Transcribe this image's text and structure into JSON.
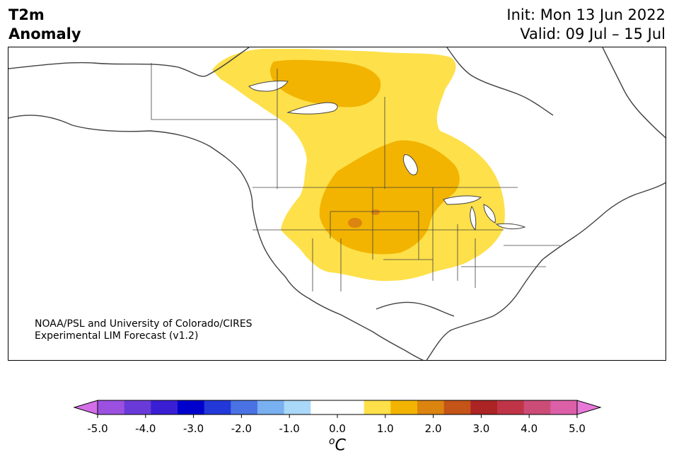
{
  "title": {
    "line1": "T2m",
    "line2": "Anomaly"
  },
  "dates": {
    "init": "Init: Mon 13 Jun 2022",
    "valid": "Valid: 09 Jul – 15 Jul"
  },
  "credit": {
    "line1": "NOAA/PSL and University of Colorado/CIRES",
    "line2": "Experimental LIM Forecast (v1.2)"
  },
  "colorbar": {
    "colors": [
      "#d46ee8",
      "#9b50e0",
      "#6a3ad8",
      "#3a1ed4",
      "#0000cc",
      "#2238d8",
      "#4a72e4",
      "#78b0f0",
      "#aad8f8",
      "#ffffff",
      "#ffffff",
      "#fee04a",
      "#f2b400",
      "#dc8410",
      "#c45418",
      "#ac2424",
      "#c03448",
      "#cc4c78",
      "#dc60a8",
      "#e878d8"
    ],
    "tick_labels": [
      "-5.0",
      "-4.0",
      "-3.0",
      "-2.0",
      "-1.0",
      "0.0",
      "1.0",
      "2.0",
      "3.0",
      "4.0",
      "5.0"
    ],
    "unit_base": "C",
    "unit_sup": "o"
  }
}
